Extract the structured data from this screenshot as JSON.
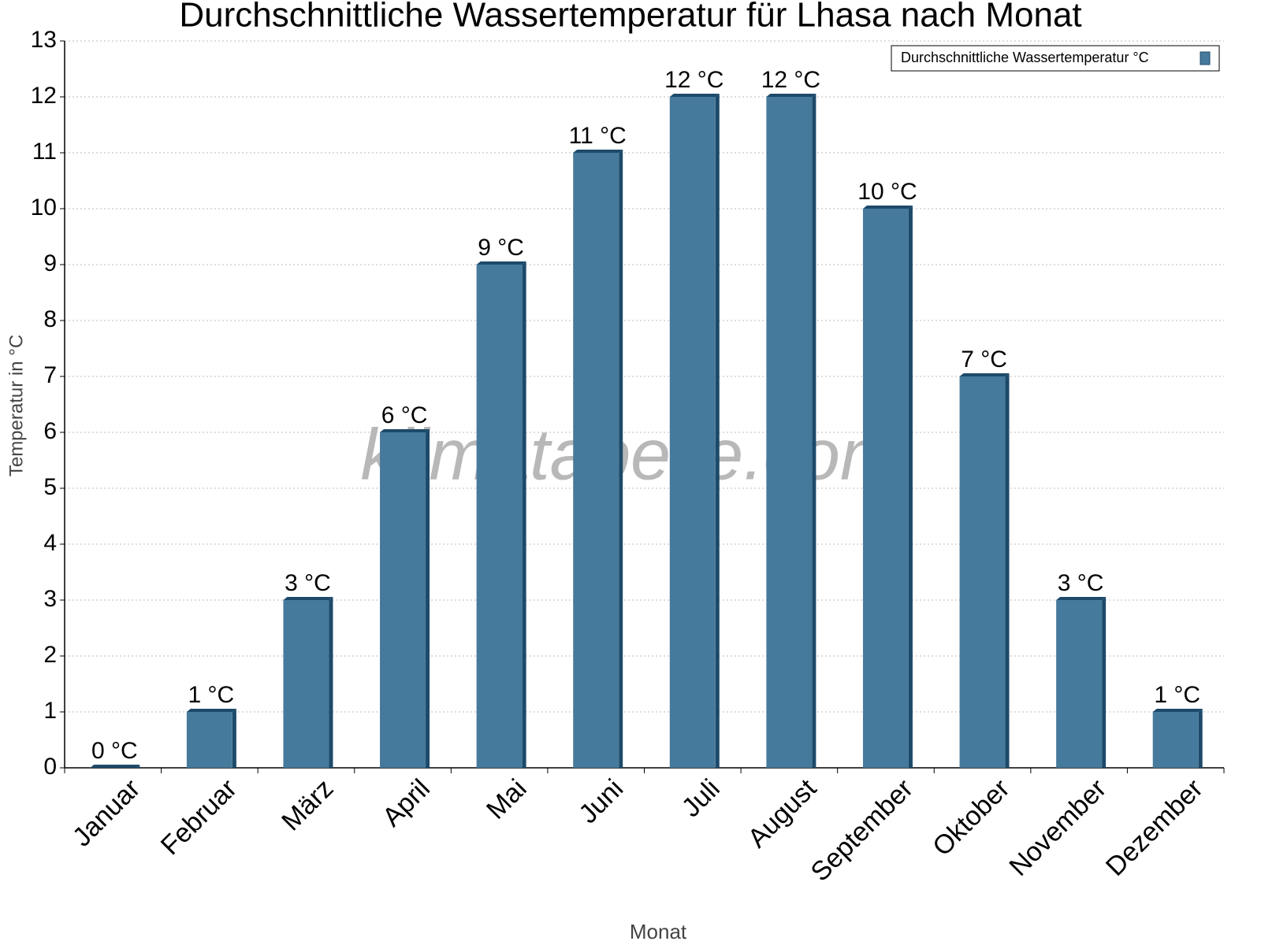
{
  "chart_data": {
    "type": "bar",
    "title": "Durchschnittliche Wassertemperatur für Lhasa nach Monat",
    "x_label": "Monat",
    "y_label": "Temperatur in °C",
    "watermark": "klimatabelle.com",
    "categories": [
      "Januar",
      "Februar",
      "März",
      "April",
      "Mai",
      "Juni",
      "Juli",
      "August",
      "September",
      "Oktober",
      "November",
      "Dezember"
    ],
    "series": [
      {
        "name": "Durchschnittliche Wassertemperatur °C",
        "color": "#467a9c",
        "values": [
          0,
          1,
          3,
          6,
          9,
          11,
          12,
          12,
          10,
          7,
          3,
          1
        ],
        "value_labels": [
          "0 °C",
          "1 °C",
          "3 °C",
          "6 °C",
          "9 °C",
          "11 °C",
          "12 °C",
          "12 °C",
          "10 °C",
          "7 °C",
          "3 °C",
          "1 °C"
        ]
      }
    ],
    "ylim": [
      0,
      13
    ],
    "yticks": [
      0,
      1,
      2,
      3,
      4,
      5,
      6,
      7,
      8,
      9,
      10,
      11,
      12,
      13
    ],
    "grid": true,
    "legend": "top-right"
  }
}
